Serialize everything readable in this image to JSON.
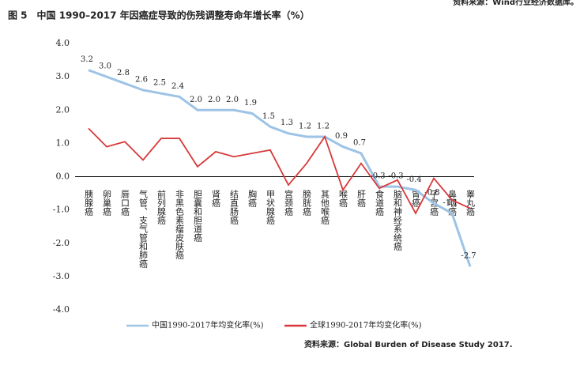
{
  "source_top": "资料来源：Wind行业经济数据库。",
  "chart_data": {
    "type": "line",
    "title": "图 5　中国 1990–2017 年因癌症导致的伤残调整寿命年增长率（%）",
    "source": "资料来源：Global Burden of Disease Study 2017.",
    "categories": [
      "胰腺癌",
      "卵巢癌",
      "唇口癌",
      "气管、支气管和肺癌",
      "前列腺癌",
      "非黑色素瘤皮肤癌",
      "胆囊和胆道癌",
      "肾癌",
      "结直肠癌",
      "胸癌",
      "甲状腺癌",
      "宫颈癌",
      "膀胱癌",
      "其他喉癌",
      "喉癌",
      "肝癌",
      "食道癌",
      "脑和神经系统癌",
      "胃癌",
      "子宫癌",
      "鼻咽癌",
      "睾丸癌"
    ],
    "series": [
      {
        "name": "中国1990-2017年均变化率(%)",
        "color": "#9dc3e6",
        "values": [
          3.2,
          3.0,
          2.8,
          2.6,
          2.5,
          2.4,
          2.0,
          2.0,
          2.0,
          1.9,
          1.5,
          1.3,
          1.2,
          1.2,
          0.9,
          0.7,
          -0.3,
          -0.3,
          -0.4,
          -0.8,
          -1.1,
          -2.7
        ],
        "value_labels": [
          "3.2",
          "3.0",
          "2.8",
          "2.6",
          "2.5",
          "2.4",
          "2.0",
          "2.0",
          "2.0",
          "1.9",
          "1.5",
          "1.3",
          "1.2",
          "1.2",
          "0.9",
          "0.7",
          "-0.3",
          "-0.3",
          "-0.4",
          "-0.8",
          "-1.1",
          "-2.7"
        ]
      },
      {
        "name": "全球1990-2017年均变化率(%)",
        "color": "#d9383a",
        "values": [
          1.45,
          0.9,
          1.05,
          0.5,
          1.15,
          1.15,
          0.3,
          0.75,
          0.6,
          0.7,
          0.8,
          -0.25,
          0.4,
          1.2,
          -0.4,
          0.4,
          -0.35,
          -0.1,
          -1.1,
          -0.05,
          -0.7,
          -0.95
        ]
      }
    ],
    "ylim": [
      -4,
      4
    ],
    "yticks": [
      {
        "value": -4,
        "label": "-4.0"
      },
      {
        "value": -3,
        "label": "-3.0"
      },
      {
        "value": -2,
        "label": "-2.0"
      },
      {
        "value": -1,
        "label": "-1.0"
      },
      {
        "value": 0,
        "label": "0.0"
      },
      {
        "value": 1,
        "label": "1.0"
      },
      {
        "value": 2,
        "label": "2.0"
      },
      {
        "value": 3,
        "label": "3.0"
      },
      {
        "value": 4,
        "label": "4.0"
      }
    ]
  }
}
